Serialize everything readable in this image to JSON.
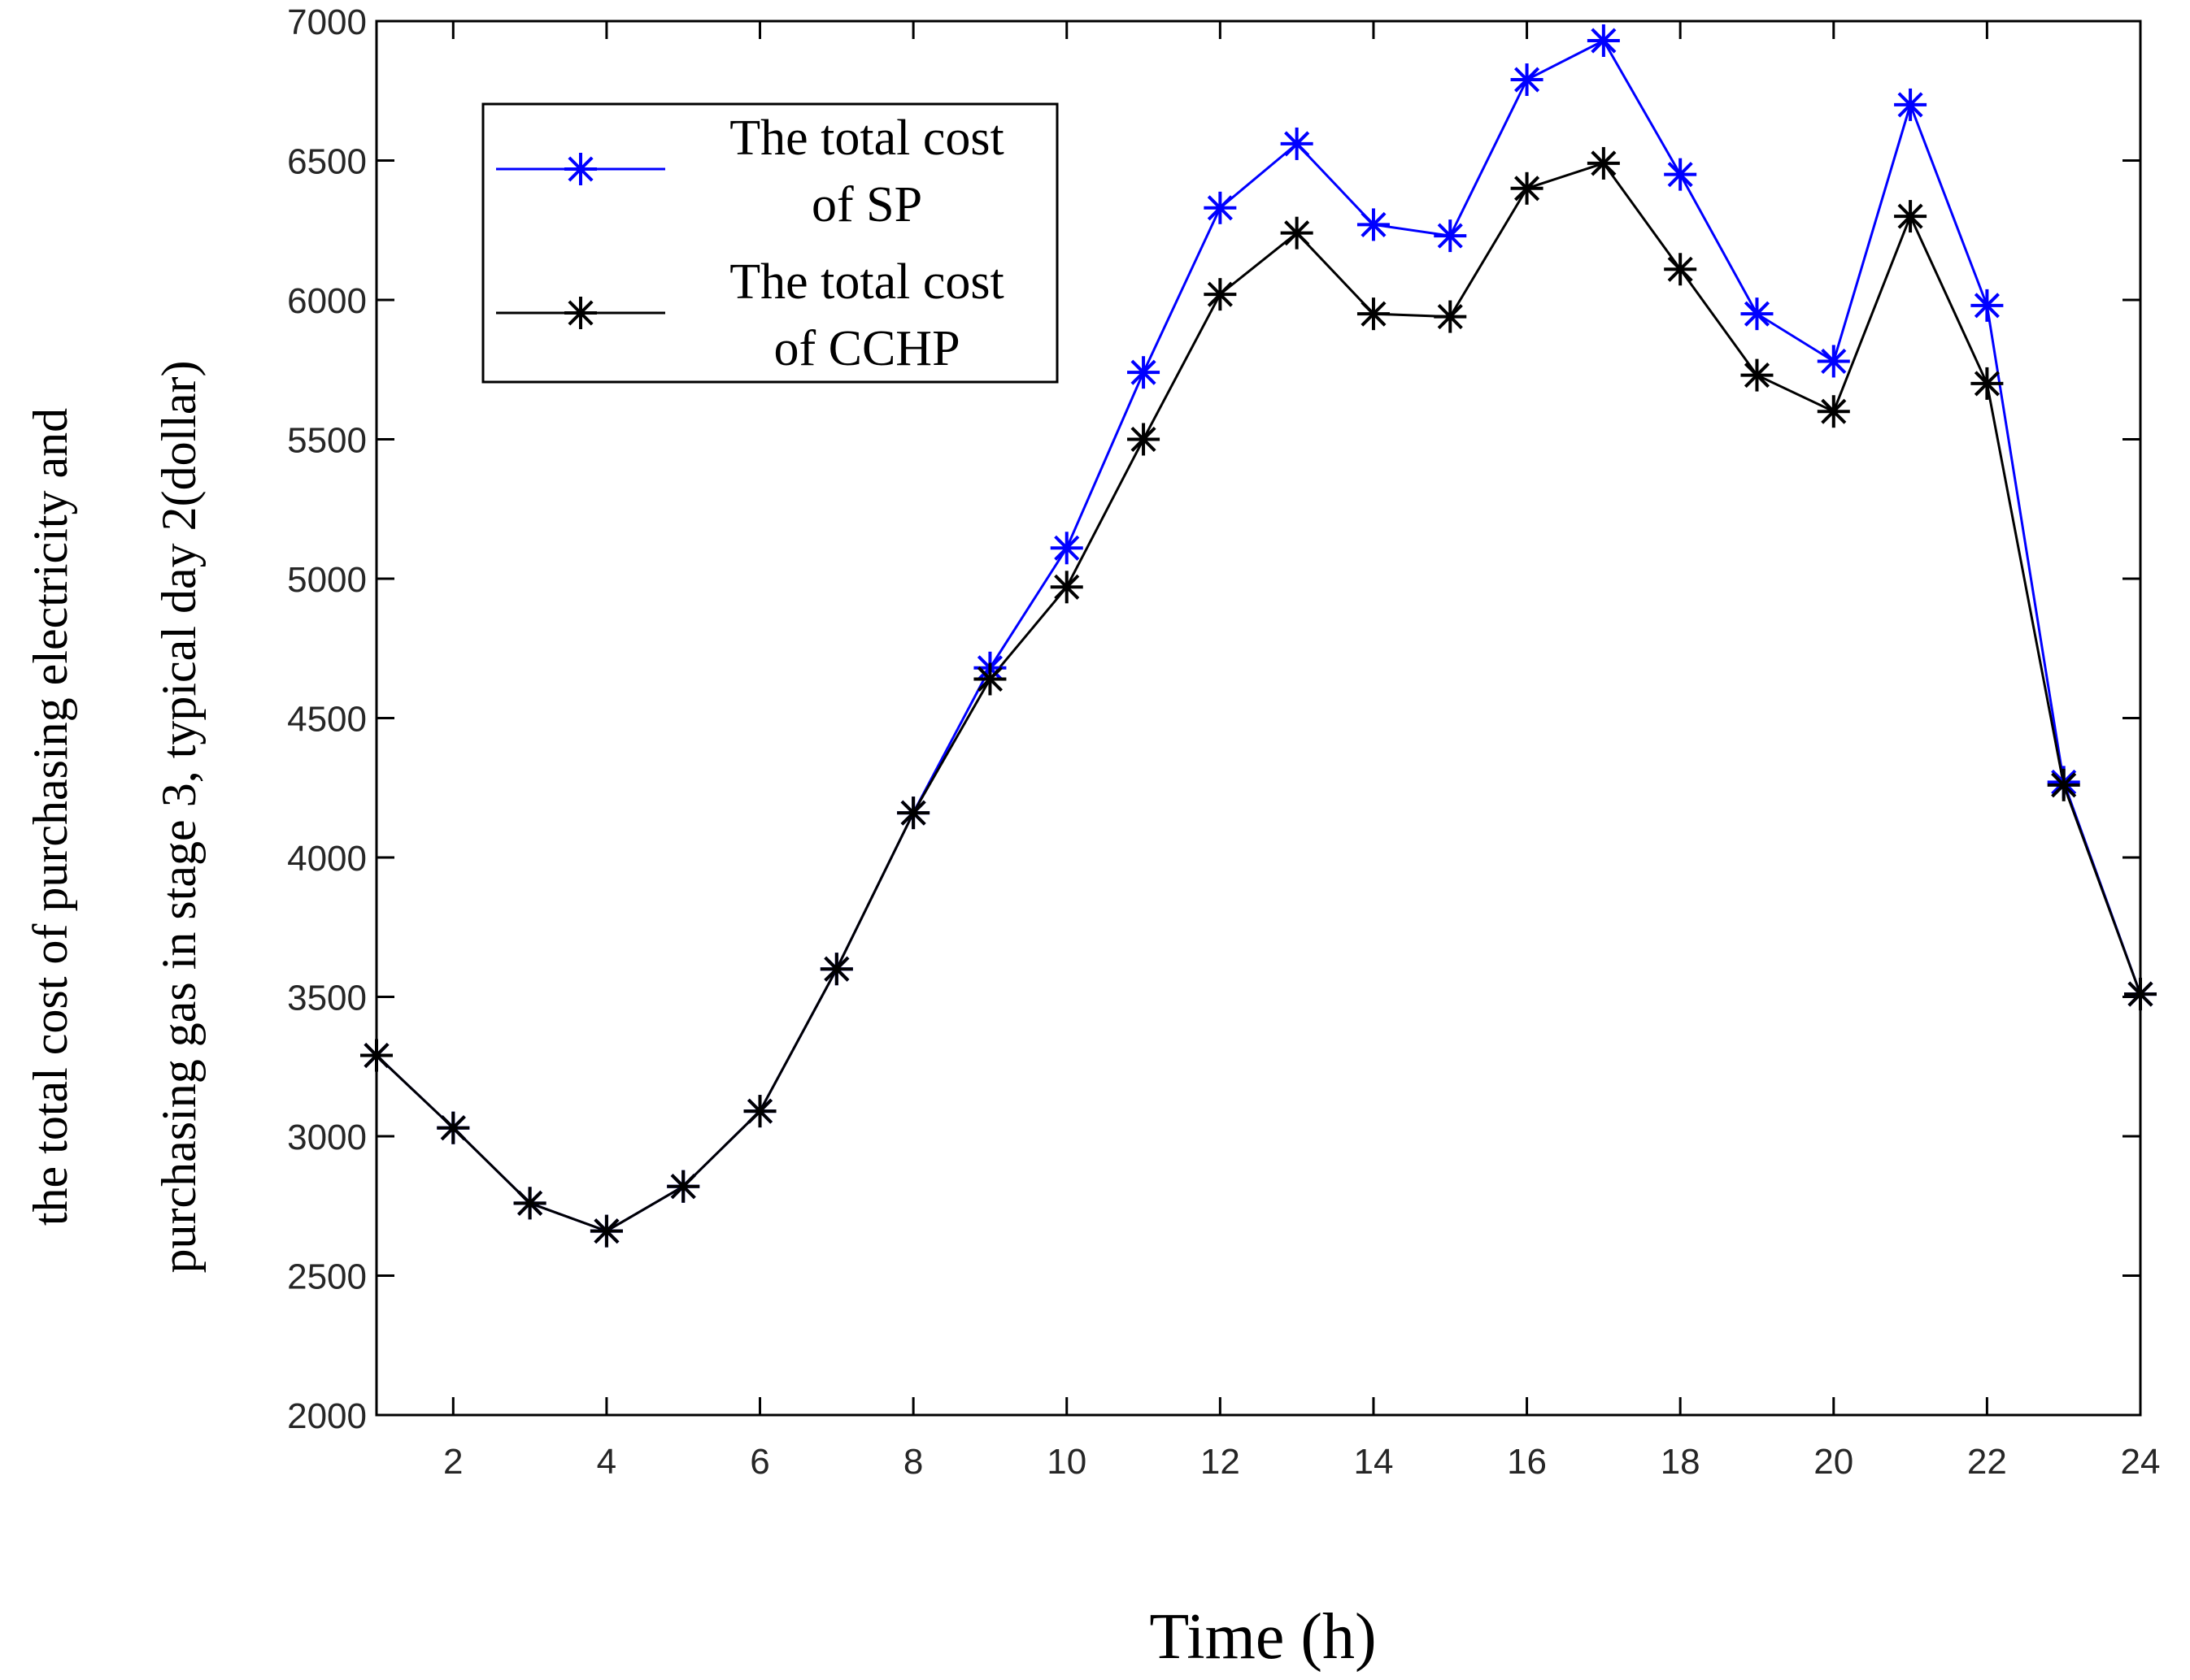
{
  "chart_data": {
    "type": "line",
    "xlabel": "Time (h)",
    "ylabel_lines": [
      "the total cost  of purchasing electricity and",
      "purchasing gas  in stage 3, typical day 2(dollar)"
    ],
    "xlim": [
      1,
      24
    ],
    "ylim": [
      2000,
      7000
    ],
    "xticks": [
      2,
      4,
      6,
      8,
      10,
      12,
      14,
      16,
      18,
      20,
      22,
      24
    ],
    "yticks": [
      2000,
      2500,
      3000,
      3500,
      4000,
      4500,
      5000,
      5500,
      6000,
      6500,
      7000
    ],
    "x": [
      1,
      2,
      3,
      4,
      5,
      6,
      7,
      8,
      9,
      10,
      11,
      12,
      13,
      14,
      15,
      16,
      17,
      18,
      19,
      20,
      21,
      22,
      23,
      24
    ],
    "series": [
      {
        "name_lines": [
          "The total cost",
          "of SP"
        ],
        "color": "#0000ff",
        "marker": "asterisk",
        "values": [
          3290,
          3030,
          2760,
          2660,
          2820,
          3090,
          3600,
          4160,
          4680,
          5110,
          5740,
          6330,
          6560,
          6270,
          6230,
          6790,
          6930,
          6450,
          5950,
          5780,
          6700,
          5980,
          4270,
          3510
        ]
      },
      {
        "name_lines": [
          "The total cost",
          "of CCHP"
        ],
        "color": "#000000",
        "marker": "asterisk",
        "values": [
          3290,
          3030,
          2760,
          2660,
          2820,
          3090,
          3600,
          4160,
          4640,
          4970,
          5500,
          6020,
          6240,
          5950,
          5940,
          6400,
          6490,
          6110,
          5730,
          5600,
          6300,
          5700,
          4260,
          3510
        ]
      }
    ],
    "legend_position": "top-left",
    "grid": false
  }
}
